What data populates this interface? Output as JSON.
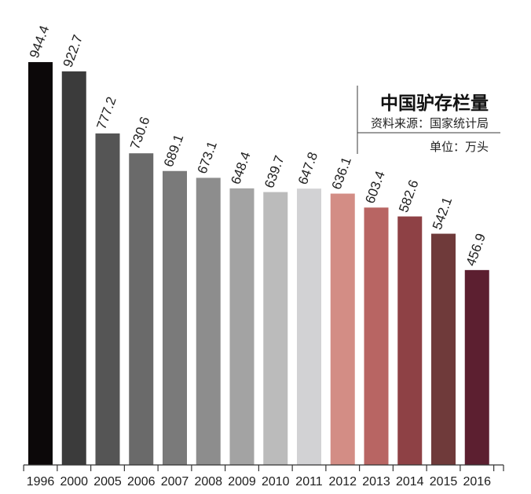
{
  "chart_data": {
    "type": "bar",
    "title": "中国驴存栏量",
    "source_note": "资料来源：国家统计局",
    "unit_note": "单位：万头",
    "xlabel": "",
    "ylabel": "",
    "categories": [
      "1996",
      "2000",
      "2005",
      "2006",
      "2007",
      "2008",
      "2009",
      "2010",
      "2011",
      "2012",
      "2013",
      "2014",
      "2015",
      "2016"
    ],
    "values": [
      944.4,
      922.7,
      777.2,
      730.6,
      689.1,
      673.1,
      648.4,
      639.7,
      647.8,
      636.1,
      603.4,
      582.6,
      542.1,
      456.9
    ],
    "colors": [
      "#0c0809",
      "#3b3b3b",
      "#555555",
      "#6a6a6a",
      "#7a7a7a",
      "#8d8d8d",
      "#a3a3a3",
      "#bbbbbb",
      "#d2d2d4",
      "#d38d85",
      "#b86563",
      "#8e4145",
      "#6f3a3a",
      "#5c1f30"
    ],
    "ylim": [
      0,
      1090
    ],
    "value_labels": true,
    "grid": false,
    "legend": "none"
  }
}
